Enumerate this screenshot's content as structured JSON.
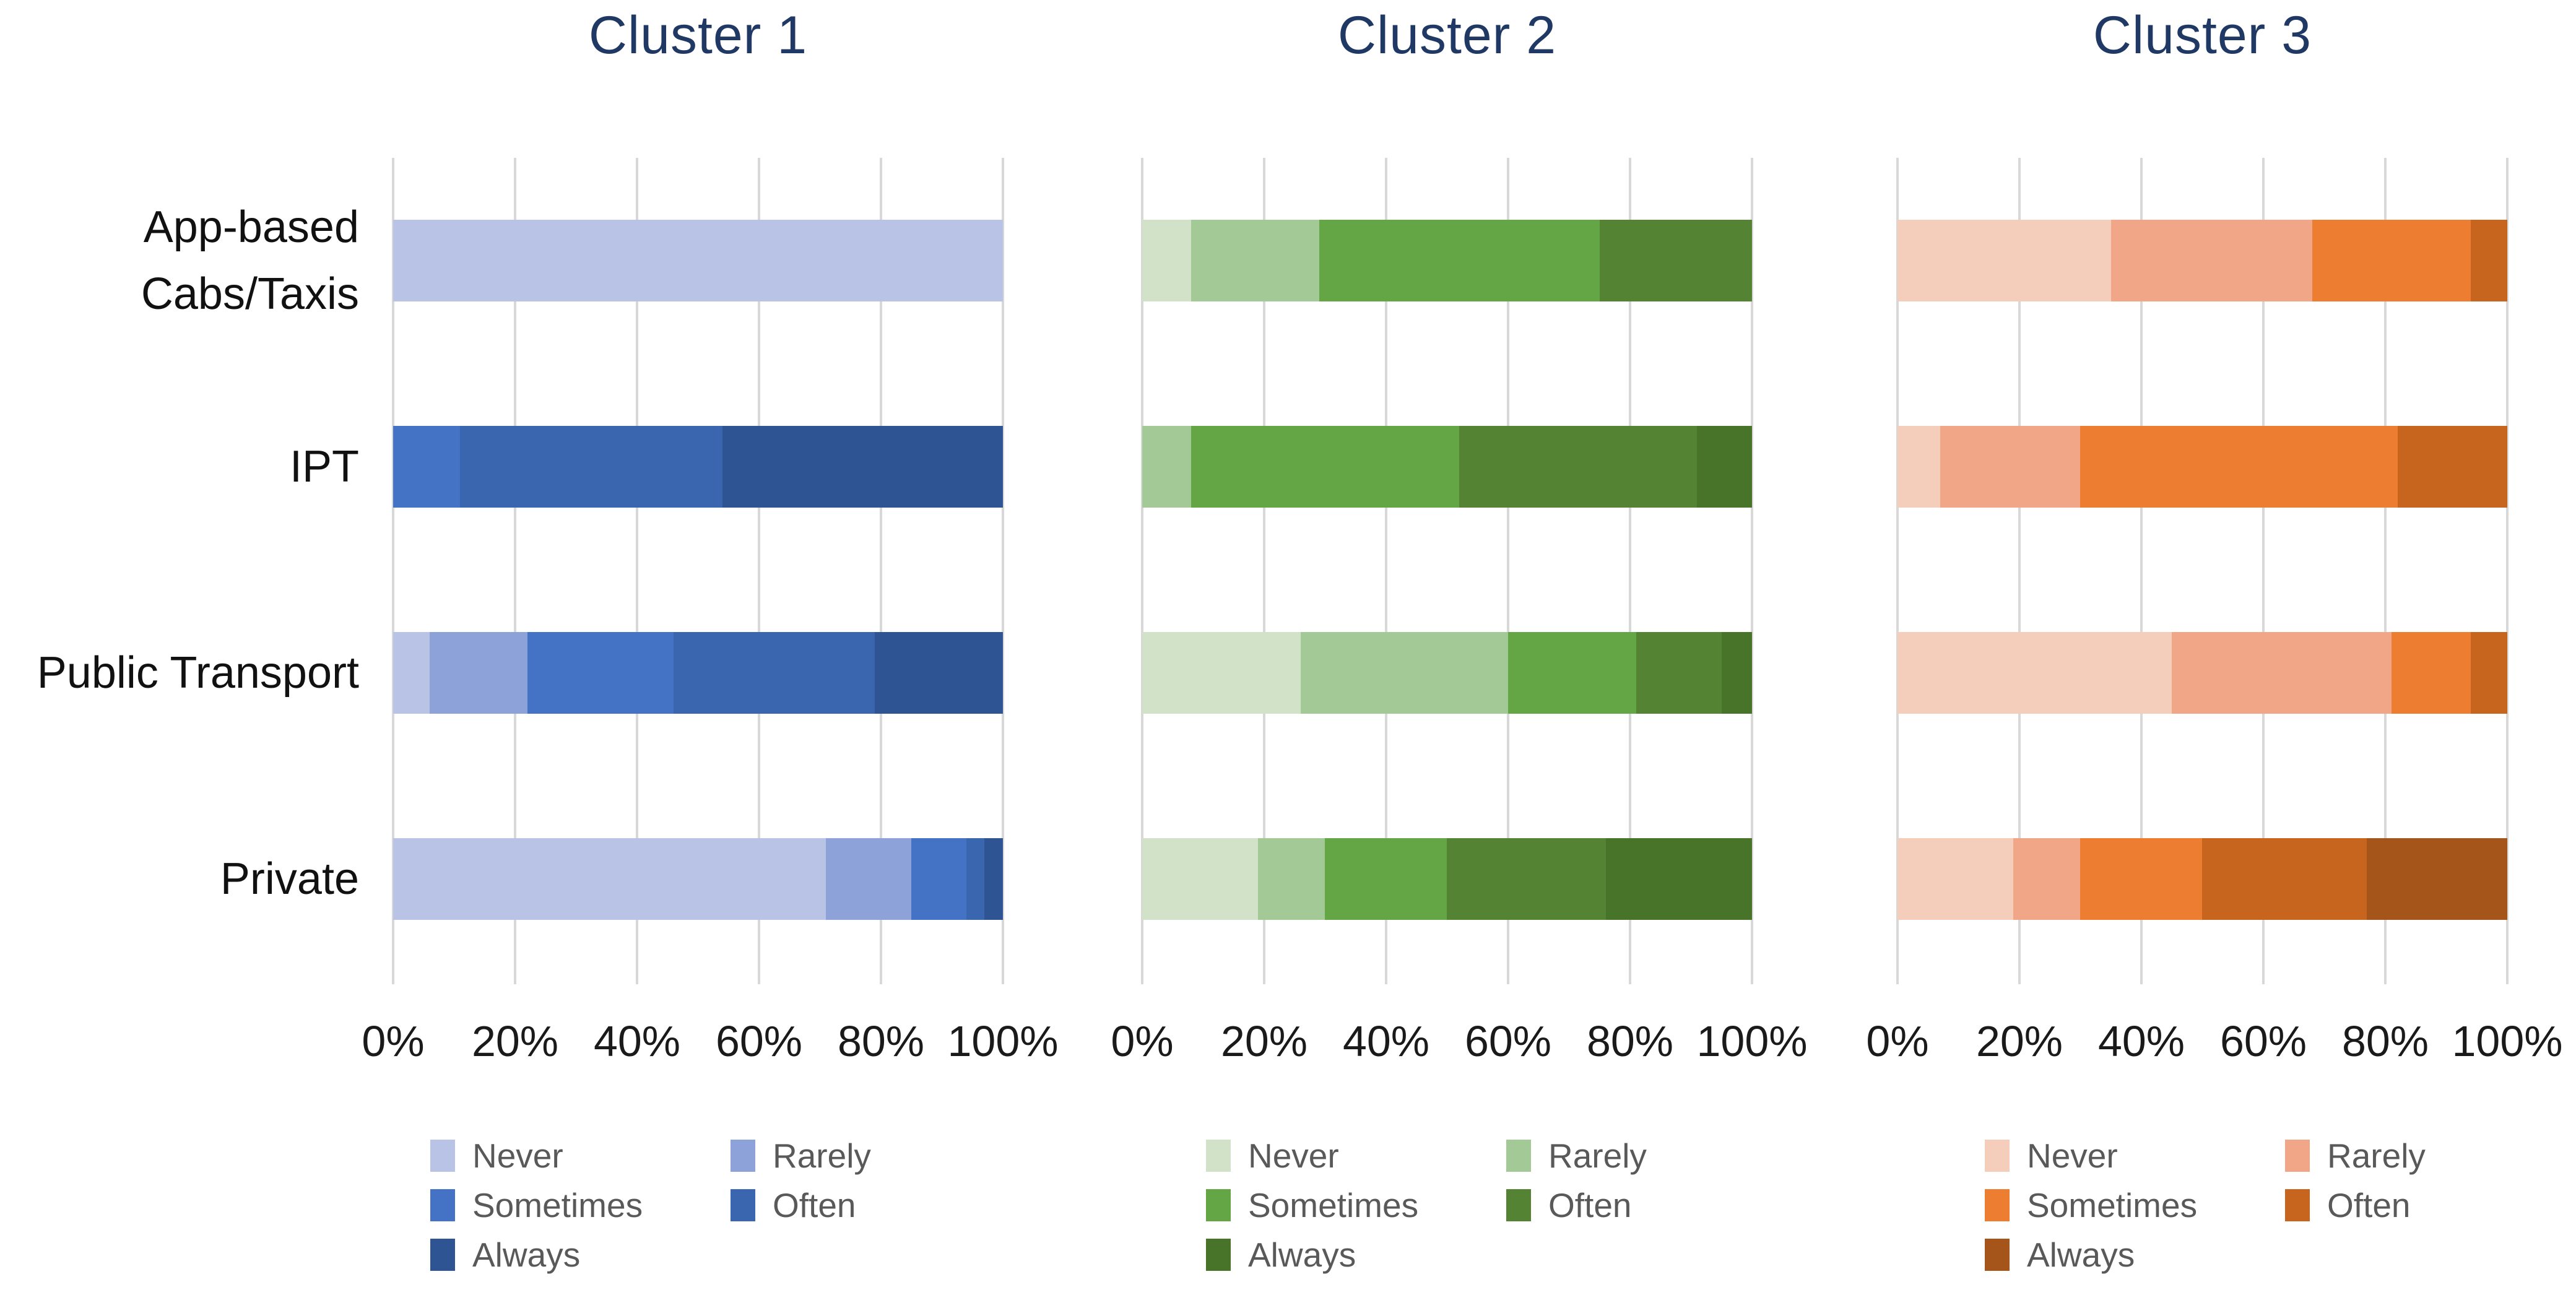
{
  "page": {
    "background": "#ffffff",
    "x_tick_labels": [
      "0%",
      "20%",
      "40%",
      "60%",
      "80%",
      "100%"
    ],
    "category_display": [
      "App-based\nCabs/Taxis",
      "IPT",
      "Public Transport",
      "Private"
    ],
    "legend_labels": [
      "Never",
      "Rarely",
      "Sometimes",
      "Often",
      "Always"
    ],
    "title_color": "#1f3864"
  },
  "chart_data": [
    {
      "type": "bar",
      "stacked": true,
      "orientation": "horizontal",
      "title": "Cluster 1",
      "categories": [
        "App-based Cabs/Taxis",
        "IPT",
        "Public Transport",
        "Private"
      ],
      "series": [
        {
          "name": "Never",
          "color": "#b8c3e6",
          "values": [
            100,
            0,
            6,
            71
          ]
        },
        {
          "name": "Rarely",
          "color": "#8ca2d8",
          "values": [
            0,
            0,
            16,
            14
          ]
        },
        {
          "name": "Sometimes",
          "color": "#4472c4",
          "values": [
            0,
            11,
            24,
            9
          ]
        },
        {
          "name": "Often",
          "color": "#3a66b0",
          "values": [
            0,
            43,
            33,
            3
          ]
        },
        {
          "name": "Always",
          "color": "#2e5494",
          "values": [
            0,
            46,
            21,
            3
          ]
        }
      ],
      "xlim": [
        0,
        100
      ],
      "x_ticks": [
        "0%",
        "20%",
        "40%",
        "60%",
        "80%",
        "100%"
      ],
      "grid": true,
      "legend_position": "bottom"
    },
    {
      "type": "bar",
      "stacked": true,
      "orientation": "horizontal",
      "title": "Cluster 2",
      "categories": [
        "App-based Cabs/Taxis",
        "IPT",
        "Public Transport",
        "Private"
      ],
      "series": [
        {
          "name": "Never",
          "color": "#d1e2c8",
          "values": [
            8,
            0,
            26,
            19
          ]
        },
        {
          "name": "Rarely",
          "color": "#a3c996",
          "values": [
            21,
            8,
            34,
            11
          ]
        },
        {
          "name": "Sometimes",
          "color": "#64a546",
          "values": [
            46,
            44,
            21,
            20
          ]
        },
        {
          "name": "Often",
          "color": "#548433",
          "values": [
            25,
            39,
            14,
            26
          ]
        },
        {
          "name": "Always",
          "color": "#48742a",
          "values": [
            0,
            9,
            5,
            24
          ]
        }
      ],
      "xlim": [
        0,
        100
      ],
      "x_ticks": [
        "0%",
        "20%",
        "40%",
        "60%",
        "80%",
        "100%"
      ],
      "grid": true,
      "legend_position": "bottom"
    },
    {
      "type": "bar",
      "stacked": true,
      "orientation": "horizontal",
      "title": "Cluster 3",
      "categories": [
        "App-based Cabs/Taxis",
        "IPT",
        "Public Transport",
        "Private"
      ],
      "series": [
        {
          "name": "Never",
          "color": "#f5cdbb",
          "values": [
            35,
            7,
            45,
            19
          ]
        },
        {
          "name": "Rarely",
          "color": "#f1a787",
          "values": [
            33,
            23,
            36,
            11
          ]
        },
        {
          "name": "Sometimes",
          "color": "#ed7d31",
          "values": [
            26,
            52,
            13,
            20
          ]
        },
        {
          "name": "Often",
          "color": "#c7651f",
          "values": [
            6,
            18,
            6,
            27
          ]
        },
        {
          "name": "Always",
          "color": "#a5541a",
          "values": [
            0,
            0,
            0,
            23
          ]
        }
      ],
      "xlim": [
        0,
        100
      ],
      "x_ticks": [
        "0%",
        "20%",
        "40%",
        "60%",
        "80%",
        "100%"
      ],
      "grid": true,
      "legend_position": "bottom"
    }
  ]
}
